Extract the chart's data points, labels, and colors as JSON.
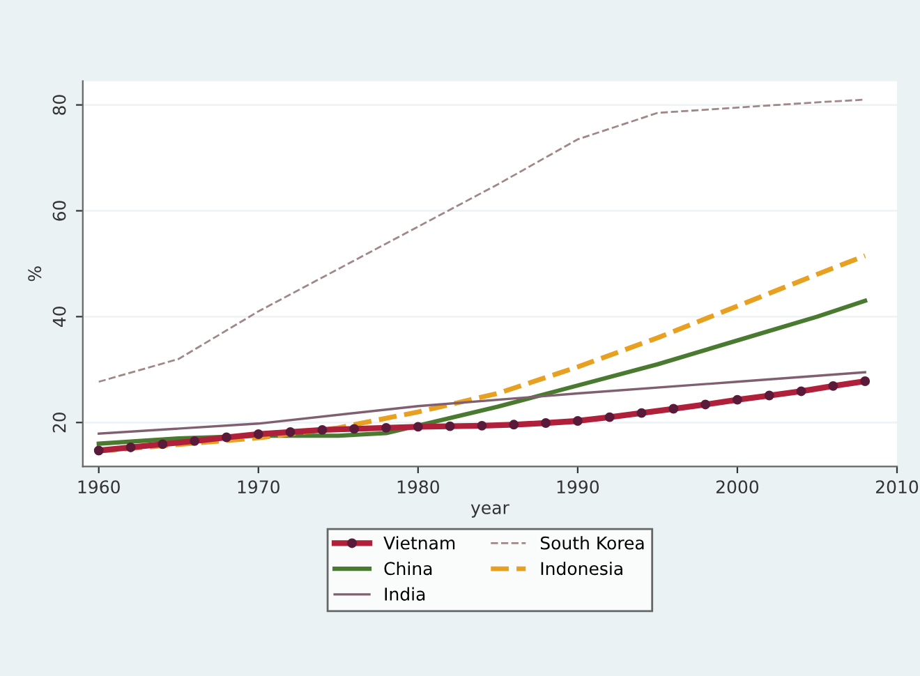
{
  "chart_data": {
    "type": "line",
    "xlabel": "year",
    "ylabel": "%",
    "xlim": [
      1959,
      2010
    ],
    "xticks": [
      1960,
      1970,
      1980,
      1990,
      2000,
      2010
    ],
    "ylim": [
      11.7,
      84.5
    ],
    "yticks": [
      20,
      40,
      60,
      80
    ],
    "grid": "y",
    "legend": "bottom",
    "series": [
      {
        "name": "Vietnam",
        "color": "#b0203a",
        "line_style": "solid",
        "marker": "circle",
        "x": [
          1960,
          1962,
          1964,
          1966,
          1968,
          1970,
          1972,
          1974,
          1976,
          1978,
          1980,
          1982,
          1984,
          1986,
          1988,
          1990,
          1992,
          1994,
          1996,
          1998,
          2000,
          2002,
          2004,
          2006,
          2008
        ],
        "values": [
          14.7,
          15.3,
          15.9,
          16.5,
          17.2,
          17.8,
          18.2,
          18.6,
          18.8,
          19.0,
          19.2,
          19.3,
          19.4,
          19.6,
          19.9,
          20.3,
          21.0,
          21.8,
          22.6,
          23.4,
          24.3,
          25.1,
          25.9,
          26.9,
          27.8
        ]
      },
      {
        "name": "South Korea",
        "color": "#a08888",
        "line_style": "dashed",
        "marker": "none",
        "x": [
          1960,
          1965,
          1970,
          1975,
          1980,
          1985,
          1990,
          1995,
          2000,
          2005,
          2008
        ],
        "values": [
          27.7,
          32,
          41,
          49,
          57,
          65,
          73.5,
          78.5,
          79.5,
          80.5,
          81
        ]
      },
      {
        "name": "China",
        "color": "#4a7a30",
        "line_style": "solid",
        "marker": "none",
        "x": [
          1960,
          1965,
          1970,
          1975,
          1978,
          1980,
          1985,
          1990,
          1995,
          2000,
          2005,
          2008
        ],
        "values": [
          16,
          17,
          17.5,
          17.5,
          18,
          19.4,
          23,
          27,
          31,
          35.5,
          40,
          43
        ]
      },
      {
        "name": "Indonesia",
        "color": "#e8a020",
        "line_style": "dashed",
        "marker": "none",
        "x": [
          1960,
          1970,
          1975,
          1980,
          1985,
          1990,
          1995,
          2000,
          2005,
          2008
        ],
        "values": [
          14.6,
          17.1,
          19,
          22,
          25.5,
          30.5,
          36,
          42,
          48,
          51.5
        ]
      },
      {
        "name": "India",
        "color": "#806070",
        "line_style": "solid",
        "marker": "none",
        "x": [
          1960,
          1970,
          1980,
          1990,
          2000,
          2008
        ],
        "values": [
          17.9,
          19.8,
          23.1,
          25.5,
          27.7,
          29.5
        ]
      }
    ]
  }
}
